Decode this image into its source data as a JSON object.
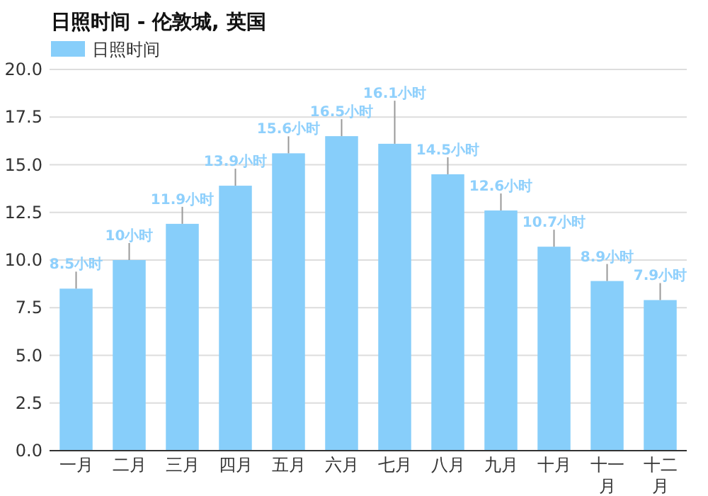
{
  "chart_data": {
    "type": "bar",
    "title": "日照时间 - 伦敦城, 英国",
    "categories": [
      "一月",
      "二月",
      "三月",
      "四月",
      "五月",
      "六月",
      "七月",
      "八月",
      "九月",
      "十月",
      "十一月",
      "十二月"
    ],
    "series": [
      {
        "name": "日照时间",
        "color": "#87cefa",
        "values": [
          8.5,
          10,
          11.9,
          13.9,
          15.6,
          16.5,
          16.1,
          14.5,
          12.6,
          10.7,
          8.9,
          7.9
        ],
        "value_labels": [
          "8.5小时",
          "10小时",
          "11.9小时",
          "13.9小时",
          "15.6小时",
          "16.5小时",
          "16.1小时",
          "14.5小时",
          "12.6小时",
          "10.7小时",
          "8.9小时",
          "7.9小时"
        ]
      }
    ],
    "ylim": [
      0,
      20
    ],
    "yticks": [
      {
        "value": 0,
        "label": "0.0"
      },
      {
        "value": 2.5,
        "label": "2.5"
      },
      {
        "value": 5,
        "label": "5.0"
      },
      {
        "value": 7.5,
        "label": "7.5"
      },
      {
        "value": 10,
        "label": "10.0"
      },
      {
        "value": 12.5,
        "label": "12.5"
      },
      {
        "value": 15,
        "label": "15.0"
      },
      {
        "value": 17.5,
        "label": "17.5"
      },
      {
        "value": 20,
        "label": "20.0"
      }
    ],
    "grid": "y",
    "legend": "top left"
  }
}
